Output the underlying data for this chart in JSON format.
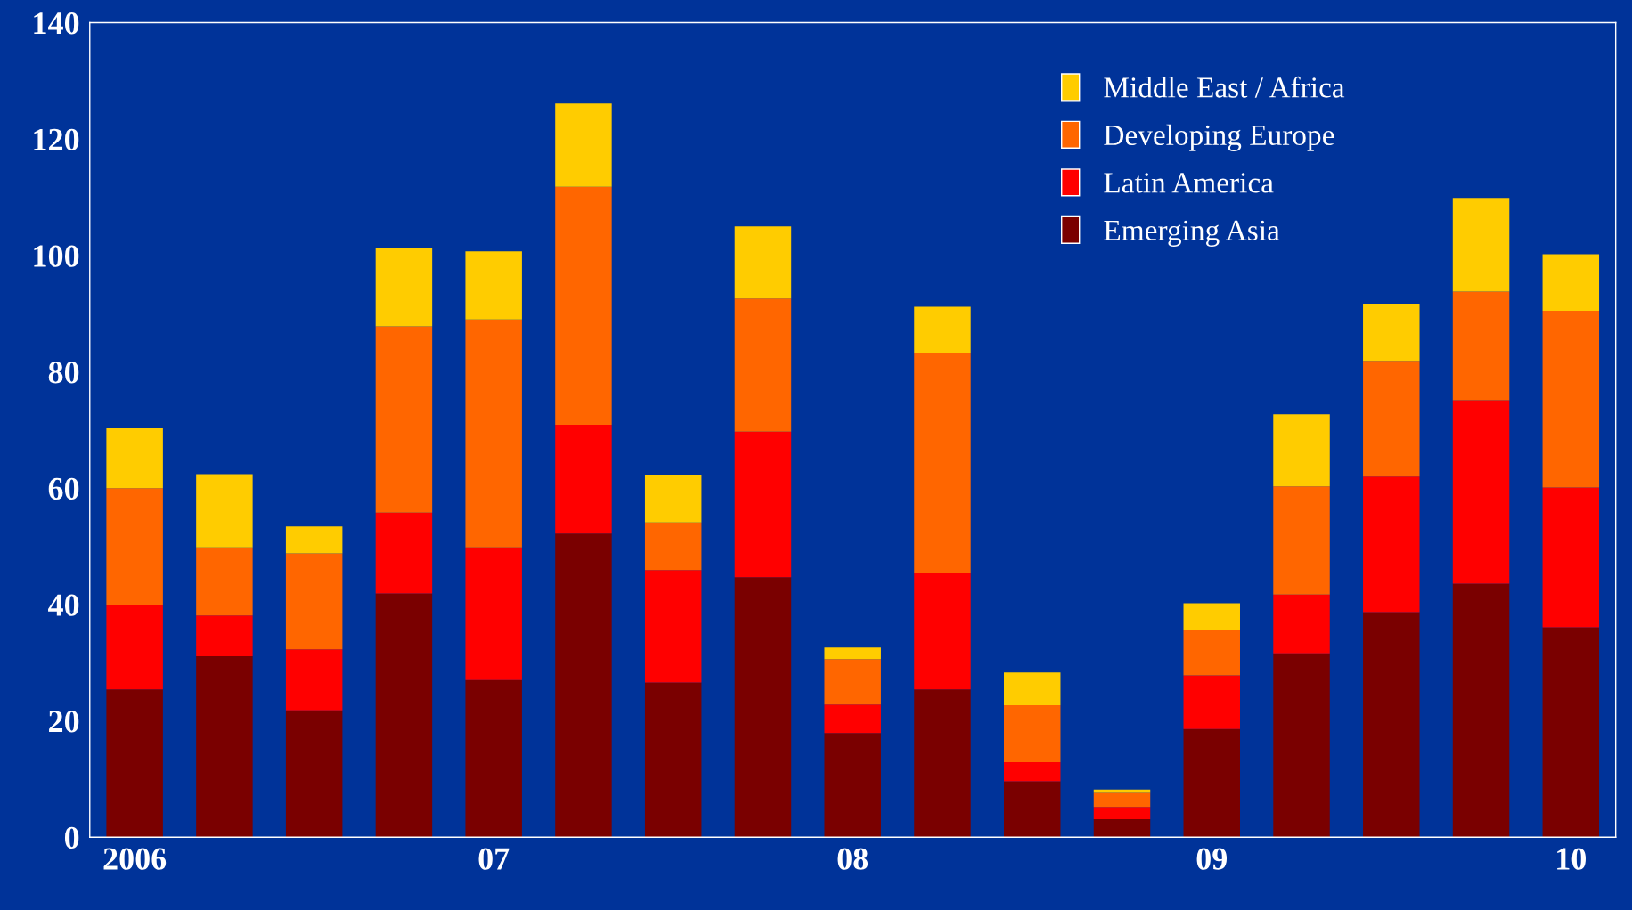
{
  "chart_data": {
    "type": "bar",
    "stacked": true,
    "categories": [
      "2006",
      null,
      null,
      null,
      "07",
      null,
      null,
      null,
      "08",
      null,
      null,
      null,
      "09",
      null,
      null,
      null,
      "10"
    ],
    "ylim": [
      0,
      140
    ],
    "yticks": [
      0,
      20,
      40,
      60,
      80,
      100,
      120,
      140
    ],
    "grid": false,
    "legend": "top right",
    "series": [
      {
        "name": "Emerging Asia",
        "color": "#7a0000",
        "values": [
          25.4,
          31.1,
          21.8,
          41.9,
          27.0,
          52.2,
          26.6,
          44.7,
          17.9,
          25.4,
          9.6,
          3.1,
          18.6,
          31.6,
          38.7,
          43.6,
          36.1
        ]
      },
      {
        "name": "Latin America",
        "color": "#ff0000",
        "values": [
          14.5,
          7.0,
          10.5,
          13.9,
          22.8,
          18.7,
          19.3,
          25.0,
          4.9,
          20.0,
          3.3,
          2.1,
          9.2,
          10.1,
          23.3,
          31.5,
          24.0
        ]
      },
      {
        "name": "Developing Europe",
        "color": "#ff6600",
        "values": [
          20.1,
          11.7,
          16.5,
          32.0,
          39.2,
          40.9,
          8.2,
          22.9,
          7.8,
          37.9,
          9.8,
          2.4,
          7.8,
          18.6,
          19.9,
          18.7,
          30.4
        ]
      },
      {
        "name": "Middle East / Africa",
        "color": "#ffcc00",
        "values": [
          10.3,
          12.6,
          4.6,
          13.4,
          11.7,
          14.3,
          8.1,
          12.4,
          2.0,
          7.9,
          5.6,
          0.6,
          4.6,
          12.4,
          9.8,
          16.1,
          9.7
        ]
      }
    ]
  }
}
